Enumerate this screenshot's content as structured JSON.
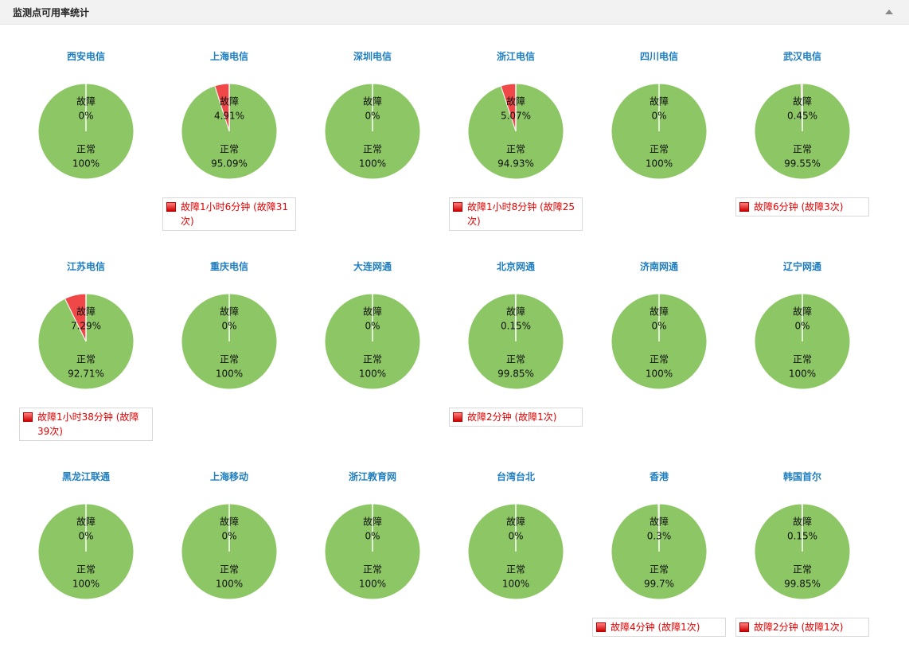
{
  "header": {
    "title": "监测点可用率统计"
  },
  "chart_data": [
    {
      "type": "pie",
      "title": "西安电信",
      "labels": [
        "故障",
        "正常"
      ],
      "values": [
        0,
        100
      ],
      "value_labels": [
        "0%",
        "100%"
      ],
      "colors": [
        "#f04848",
        "#8cc665"
      ]
    },
    {
      "type": "pie",
      "title": "上海电信",
      "labels": [
        "故障",
        "正常"
      ],
      "values": [
        4.91,
        95.09
      ],
      "value_labels": [
        "4.91%",
        "95.09%"
      ],
      "colors": [
        "#f04848",
        "#8cc665"
      ],
      "annotation": "故障1小时6分钟 (故障31次)"
    },
    {
      "type": "pie",
      "title": "深圳电信",
      "labels": [
        "故障",
        "正常"
      ],
      "values": [
        0,
        100
      ],
      "value_labels": [
        "0%",
        "100%"
      ],
      "colors": [
        "#f04848",
        "#8cc665"
      ]
    },
    {
      "type": "pie",
      "title": "浙江电信",
      "labels": [
        "故障",
        "正常"
      ],
      "values": [
        5.07,
        94.93
      ],
      "value_labels": [
        "5.07%",
        "94.93%"
      ],
      "colors": [
        "#f04848",
        "#8cc665"
      ],
      "annotation": "故障1小时8分钟 (故障25次)"
    },
    {
      "type": "pie",
      "title": "四川电信",
      "labels": [
        "故障",
        "正常"
      ],
      "values": [
        0,
        100
      ],
      "value_labels": [
        "0%",
        "100%"
      ],
      "colors": [
        "#f04848",
        "#8cc665"
      ]
    },
    {
      "type": "pie",
      "title": "武汉电信",
      "labels": [
        "故障",
        "正常"
      ],
      "values": [
        0.45,
        99.55
      ],
      "value_labels": [
        "0.45%",
        "99.55%"
      ],
      "colors": [
        "#f04848",
        "#8cc665"
      ],
      "annotation": "故障6分钟 (故障3次)"
    },
    {
      "type": "pie",
      "title": "江苏电信",
      "labels": [
        "故障",
        "正常"
      ],
      "values": [
        7.29,
        92.71
      ],
      "value_labels": [
        "7.29%",
        "92.71%"
      ],
      "colors": [
        "#f04848",
        "#8cc665"
      ],
      "annotation": "故障1小时38分钟 (故障39次)"
    },
    {
      "type": "pie",
      "title": "重庆电信",
      "labels": [
        "故障",
        "正常"
      ],
      "values": [
        0,
        100
      ],
      "value_labels": [
        "0%",
        "100%"
      ],
      "colors": [
        "#f04848",
        "#8cc665"
      ]
    },
    {
      "type": "pie",
      "title": "大连网通",
      "labels": [
        "故障",
        "正常"
      ],
      "values": [
        0,
        100
      ],
      "value_labels": [
        "0%",
        "100%"
      ],
      "colors": [
        "#f04848",
        "#8cc665"
      ]
    },
    {
      "type": "pie",
      "title": "北京网通",
      "labels": [
        "故障",
        "正常"
      ],
      "values": [
        0.15,
        99.85
      ],
      "value_labels": [
        "0.15%",
        "99.85%"
      ],
      "colors": [
        "#f04848",
        "#8cc665"
      ],
      "annotation": "故障2分钟 (故障1次)"
    },
    {
      "type": "pie",
      "title": "济南网通",
      "labels": [
        "故障",
        "正常"
      ],
      "values": [
        0,
        100
      ],
      "value_labels": [
        "0%",
        "100%"
      ],
      "colors": [
        "#f04848",
        "#8cc665"
      ]
    },
    {
      "type": "pie",
      "title": "辽宁网通",
      "labels": [
        "故障",
        "正常"
      ],
      "values": [
        0,
        100
      ],
      "value_labels": [
        "0%",
        "100%"
      ],
      "colors": [
        "#f04848",
        "#8cc665"
      ]
    },
    {
      "type": "pie",
      "title": "黑龙江联通",
      "labels": [
        "故障",
        "正常"
      ],
      "values": [
        0,
        100
      ],
      "value_labels": [
        "0%",
        "100%"
      ],
      "colors": [
        "#f04848",
        "#8cc665"
      ]
    },
    {
      "type": "pie",
      "title": "上海移动",
      "labels": [
        "故障",
        "正常"
      ],
      "values": [
        0,
        100
      ],
      "value_labels": [
        "0%",
        "100%"
      ],
      "colors": [
        "#f04848",
        "#8cc665"
      ]
    },
    {
      "type": "pie",
      "title": "浙江教育网",
      "labels": [
        "故障",
        "正常"
      ],
      "values": [
        0,
        100
      ],
      "value_labels": [
        "0%",
        "100%"
      ],
      "colors": [
        "#f04848",
        "#8cc665"
      ]
    },
    {
      "type": "pie",
      "title": "台湾台北",
      "labels": [
        "故障",
        "正常"
      ],
      "values": [
        0,
        100
      ],
      "value_labels": [
        "0%",
        "100%"
      ],
      "colors": [
        "#f04848",
        "#8cc665"
      ]
    },
    {
      "type": "pie",
      "title": "香港",
      "labels": [
        "故障",
        "正常"
      ],
      "values": [
        0.3,
        99.7
      ],
      "value_labels": [
        "0.3%",
        "99.7%"
      ],
      "colors": [
        "#f04848",
        "#8cc665"
      ],
      "annotation": "故障4分钟 (故障1次)"
    },
    {
      "type": "pie",
      "title": "韩国首尔",
      "labels": [
        "故障",
        "正常"
      ],
      "values": [
        0.15,
        99.85
      ],
      "value_labels": [
        "0.15%",
        "99.85%"
      ],
      "colors": [
        "#f04848",
        "#8cc665"
      ],
      "annotation": "故障2分钟 (故障1次)"
    }
  ]
}
